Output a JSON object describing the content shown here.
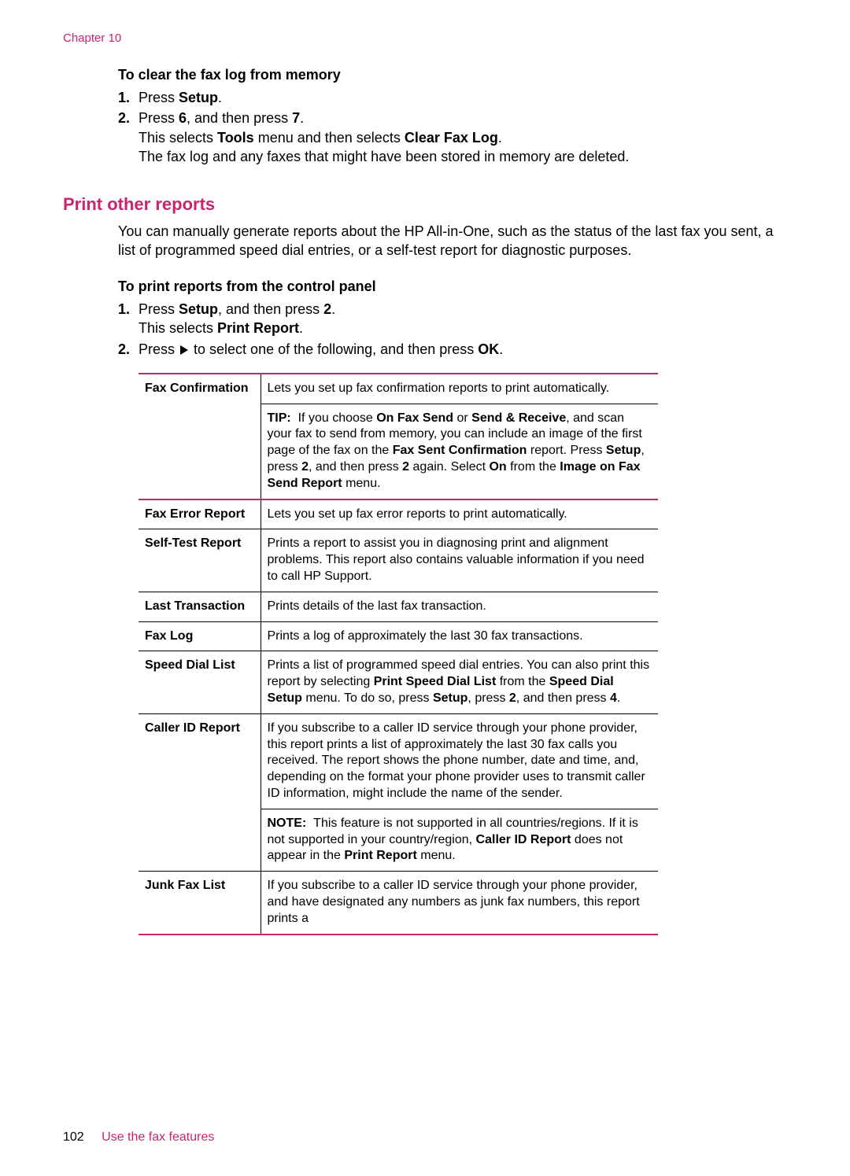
{
  "colors": {
    "accent": "#c8246f",
    "text": "#000000",
    "background": "#ffffff"
  },
  "chapter_label": "Chapter 10",
  "clear_fax": {
    "heading": "To clear the fax log from memory",
    "steps": {
      "s1_num": "1.",
      "s1_a": "Press ",
      "s1_b": "Setup",
      "s1_c": ".",
      "s2_num": "2.",
      "s2_a": "Press ",
      "s2_b": "6",
      "s2_c": ", and then press ",
      "s2_d": "7",
      "s2_e": ".",
      "s2_line2_a": "This selects ",
      "s2_line2_b": "Tools",
      "s2_line2_c": " menu and then selects ",
      "s2_line2_d": "Clear Fax Log",
      "s2_line2_e": ".",
      "s2_line3": "The fax log and any faxes that might have been stored in memory are deleted."
    }
  },
  "print_reports": {
    "title": "Print other reports",
    "intro": "You can manually generate reports about the HP All-in-One, such as the status of the last fax you sent, a list of programmed speed dial entries, or a self-test report for diagnostic purposes.",
    "subheading": "To print reports from the control panel",
    "steps": {
      "s1_num": "1.",
      "s1_a": "Press ",
      "s1_b": "Setup",
      "s1_c": ", and then press ",
      "s1_d": "2",
      "s1_e": ".",
      "s1_line2_a": "This selects ",
      "s1_line2_b": "Print Report",
      "s1_line2_c": ".",
      "s2_num": "2.",
      "s2_a": "Press ",
      "s2_b": " to select one of the following, and then press ",
      "s2_c": "OK",
      "s2_d": "."
    }
  },
  "table": {
    "fax_confirmation": {
      "label": "Fax Confirmation",
      "desc": "Lets you set up fax confirmation reports to print automatically.",
      "tip_label": "TIP:",
      "tip_a": "If you choose ",
      "tip_b": "On Fax Send",
      "tip_c": " or ",
      "tip_d": "Send & Receive",
      "tip_e": ", and scan your fax to send from memory, you can include an image of the first page of the fax on the ",
      "tip_f": "Fax Sent Confirmation",
      "tip_g": " report. Press ",
      "tip_h": "Setup",
      "tip_i": ", press ",
      "tip_j": "2",
      "tip_k": ", and then press ",
      "tip_l": "2",
      "tip_m": " again. Select ",
      "tip_n": "On",
      "tip_o": " from the ",
      "tip_p": "Image on Fax Send Report",
      "tip_q": " menu."
    },
    "fax_error": {
      "label": "Fax Error Report",
      "desc": "Lets you set up fax error reports to print automatically."
    },
    "self_test": {
      "label": "Self-Test Report",
      "desc": "Prints a report to assist you in diagnosing print and alignment problems. This report also contains valuable information if you need to call HP Support."
    },
    "last_trans": {
      "label": "Last Transaction",
      "desc": "Prints details of the last fax transaction."
    },
    "fax_log": {
      "label": "Fax Log",
      "desc": "Prints a log of approximately the last 30 fax transactions."
    },
    "speed_dial": {
      "label": "Speed Dial List",
      "desc_a": "Prints a list of programmed speed dial entries. You can also print this report by selecting ",
      "desc_b": "Print Speed Dial List",
      "desc_c": " from the ",
      "desc_d": "Speed Dial Setup",
      "desc_e": " menu. To do so, press ",
      "desc_f": "Setup",
      "desc_g": ", press ",
      "desc_h": "2",
      "desc_i": ", and then press ",
      "desc_j": "4",
      "desc_k": "."
    },
    "caller_id": {
      "label": "Caller ID Report",
      "desc": "If you subscribe to a caller ID service through your phone provider, this report prints a list of approximately the last 30 fax calls you received. The report shows the phone number, date and time, and, depending on the format your phone provider uses to transmit caller ID information, might include the name of the sender.",
      "note_label": "NOTE:",
      "note_a": "This feature is not supported in all countries/regions. If it is not supported in your country/region, ",
      "note_b": "Caller ID Report",
      "note_c": " does not appear in the ",
      "note_d": "Print Report",
      "note_e": " menu."
    },
    "junk_fax": {
      "label": "Junk Fax List",
      "desc": "If you subscribe to a caller ID service through your phone provider, and have designated any numbers as junk fax numbers, this report prints a"
    }
  },
  "footer": {
    "page_num": "102",
    "section": "Use the fax features"
  }
}
